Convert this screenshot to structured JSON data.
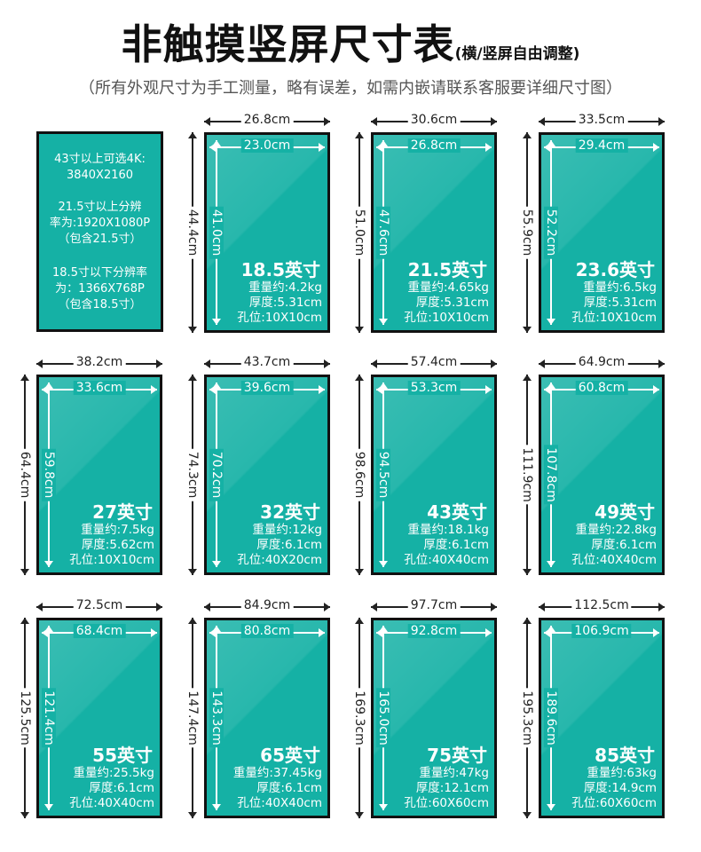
{
  "header": {
    "title": "非触摸竖屏尺寸表",
    "title_suffix": "(横/竖屏自由调整)",
    "subtitle": "（所有外观尺寸为手工测量，略有误差，如需内嵌请联系客服要详细尺寸图）"
  },
  "note": {
    "line1": "43寸以上可选4K:",
    "line2": "3840X2160",
    "line3": "21.5寸以上分辨",
    "line4": "率为:1920X1080P",
    "line5": "（包含21.5寸）",
    "line6": "18.5寸以下分辨率",
    "line7": "为：1366X768P",
    "line8": "（包含18.5寸）"
  },
  "colors": {
    "screen": "#15b1a5",
    "border": "#111111",
    "text_dark": "#222222"
  },
  "units": [
    {
      "size": "18.5英寸",
      "outer_w": "26.8cm",
      "outer_h": "44.4cm",
      "inner_w": "23.0cm",
      "inner_h": "41.0cm",
      "weight": "重量约:4.2kg",
      "thickness": "厚度:5.31cm",
      "holes": "孔位:10X10cm"
    },
    {
      "size": "21.5英寸",
      "outer_w": "30.6cm",
      "outer_h": "51.0cm",
      "inner_w": "26.8cm",
      "inner_h": "47.6cm",
      "weight": "重量约:4.65kg",
      "thickness": "厚度:5.31cm",
      "holes": "孔位:10X10cm"
    },
    {
      "size": "23.6英寸",
      "outer_w": "33.5cm",
      "outer_h": "55.9cm",
      "inner_w": "29.4cm",
      "inner_h": "52.2cm",
      "weight": "重量约:6.5kg",
      "thickness": "厚度:5.31cm",
      "holes": "孔位:10X10cm"
    },
    {
      "size": "27英寸",
      "outer_w": "38.2cm",
      "outer_h": "64.4cm",
      "inner_w": "33.6cm",
      "inner_h": "59.8cm",
      "weight": "重量约:7.5kg",
      "thickness": "厚度:5.62cm",
      "holes": "孔位:10X10cm"
    },
    {
      "size": "32英寸",
      "outer_w": "43.7cm",
      "outer_h": "74.3cm",
      "inner_w": "39.6cm",
      "inner_h": "70.2cm",
      "weight": "重量约:12kg",
      "thickness": "厚度:6.1cm",
      "holes": "孔位:40X20cm"
    },
    {
      "size": "43英寸",
      "outer_w": "57.4cm",
      "outer_h": "98.6cm",
      "inner_w": "53.3cm",
      "inner_h": "94.5cm",
      "weight": "重量约:18.1kg",
      "thickness": "厚度:6.1cm",
      "holes": "孔位:40X40cm"
    },
    {
      "size": "49英寸",
      "outer_w": "64.9cm",
      "outer_h": "111.9cm",
      "inner_w": "60.8cm",
      "inner_h": "107.8cm",
      "weight": "重量约:22.8kg",
      "thickness": "厚度:6.1cm",
      "holes": "孔位:40X40cm"
    },
    {
      "size": "55英寸",
      "outer_w": "72.5cm",
      "outer_h": "125.5cm",
      "inner_w": "68.4cm",
      "inner_h": "121.4cm",
      "weight": "重量约:25.5kg",
      "thickness": "厚度:6.1cm",
      "holes": "孔位:40X40cm"
    },
    {
      "size": "65英寸",
      "outer_w": "84.9cm",
      "outer_h": "147.4cm",
      "inner_w": "80.8cm",
      "inner_h": "143.3cm",
      "weight": "重量约:37.45kg",
      "thickness": "厚度:6.1cm",
      "holes": "孔位:40X40cm"
    },
    {
      "size": "75英寸",
      "outer_w": "97.7cm",
      "outer_h": "169.3cm",
      "inner_w": "92.8cm",
      "inner_h": "165.0cm",
      "weight": "重量约:47kg",
      "thickness": "厚度:12.1cm",
      "holes": "孔位:60X60cm"
    },
    {
      "size": "85英寸",
      "outer_w": "112.5cm",
      "outer_h": "195.3cm",
      "inner_w": "106.9cm",
      "inner_h": "189.6cm",
      "weight": "重量约:63kg",
      "thickness": "厚度:14.9cm",
      "holes": "孔位:60X60cm"
    }
  ]
}
